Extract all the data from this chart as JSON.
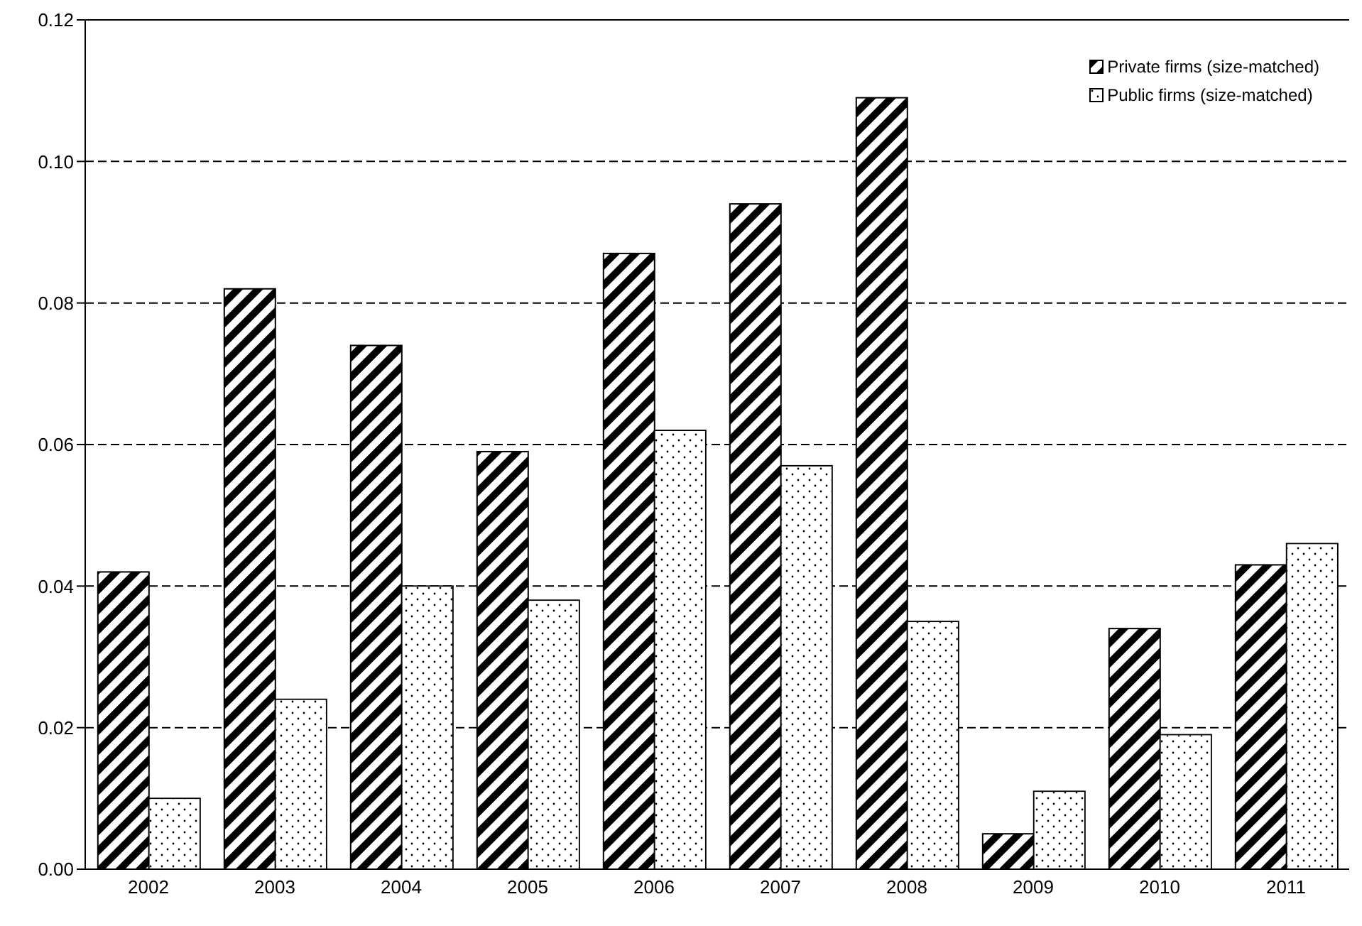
{
  "chart_data": {
    "type": "bar",
    "categories": [
      "2002",
      "2003",
      "2004",
      "2005",
      "2006",
      "2007",
      "2008",
      "2009",
      "2010",
      "2011"
    ],
    "series": [
      {
        "name": "Private firms (size-matched)",
        "color": "#000000",
        "values": [
          0.042,
          0.082,
          0.074,
          0.059,
          0.087,
          0.094,
          0.109,
          0.005,
          0.034,
          0.043
        ]
      },
      {
        "name": "Public firms (size-matched)",
        "color": "#ffffff",
        "values": [
          0.01,
          0.024,
          0.04,
          0.038,
          0.062,
          0.057,
          0.035,
          0.011,
          0.019,
          0.046
        ]
      }
    ],
    "ylim": [
      0,
      0.12
    ],
    "yticks": [
      {
        "value": 0,
        "label": "0.00"
      },
      {
        "value": 0.02,
        "label": "0.02"
      },
      {
        "value": 0.04,
        "label": "0.04"
      },
      {
        "value": 0.06,
        "label": "0.06"
      },
      {
        "value": 0.08,
        "label": "0.08"
      },
      {
        "value": 0.1,
        "label": "0.10"
      },
      {
        "value": 0.12,
        "label": "0.12"
      }
    ],
    "grid": "y",
    "legend": "top right"
  }
}
